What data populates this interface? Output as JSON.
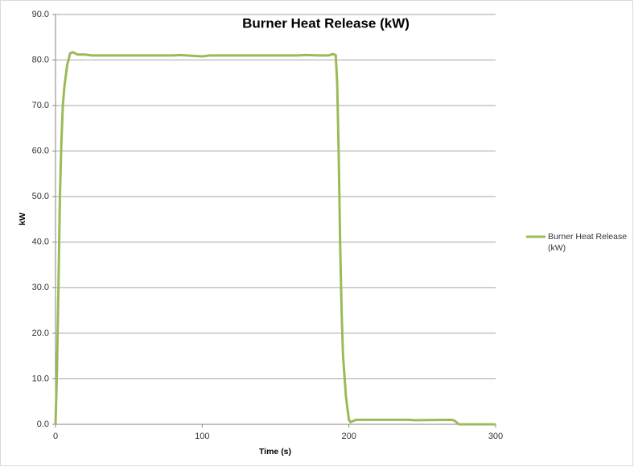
{
  "chart_data": {
    "type": "line",
    "title": "Burner Heat Release (kW)",
    "x_label": "Time (s)",
    "y_label": "kW",
    "x": [
      0,
      1,
      2,
      3,
      4,
      5,
      6,
      8,
      10,
      12,
      15,
      20,
      25,
      40,
      60,
      80,
      85,
      95,
      100,
      105,
      150,
      165,
      170,
      180,
      186,
      189,
      191,
      192,
      193,
      194,
      195,
      196,
      198,
      200,
      201,
      205,
      240,
      245,
      270,
      272,
      275,
      300
    ],
    "series": [
      {
        "name": "Burner Heat Release (kW)",
        "color": "#9bbb59",
        "values": [
          0,
          12,
          30,
          50,
          62,
          70,
          74,
          79,
          81.5,
          81.7,
          81.2,
          81.2,
          81,
          81,
          81,
          81,
          81.1,
          80.9,
          80.8,
          81,
          81,
          81,
          81.1,
          81,
          81,
          81.3,
          81.1,
          75,
          60,
          40,
          25,
          15,
          6,
          1,
          0.5,
          1,
          1,
          0.9,
          1,
          0.8,
          0,
          0
        ]
      }
    ],
    "xlim": [
      0,
      300
    ],
    "xticks": [
      0,
      100,
      200,
      300
    ],
    "ylim": [
      0,
      90
    ],
    "yticks": [
      {
        "value": 0,
        "label": "0.0"
      },
      {
        "value": 10,
        "label": "10.0"
      },
      {
        "value": 20,
        "label": "20.0"
      },
      {
        "value": 30,
        "label": "30.0"
      },
      {
        "value": 40,
        "label": "40.0"
      },
      {
        "value": 50,
        "label": "50.0"
      },
      {
        "value": 60,
        "label": "60.0"
      },
      {
        "value": 70,
        "label": "70.0"
      },
      {
        "value": 80,
        "label": "80.0"
      },
      {
        "value": 90,
        "label": "90.0"
      }
    ],
    "grid": true,
    "legend": "right"
  }
}
